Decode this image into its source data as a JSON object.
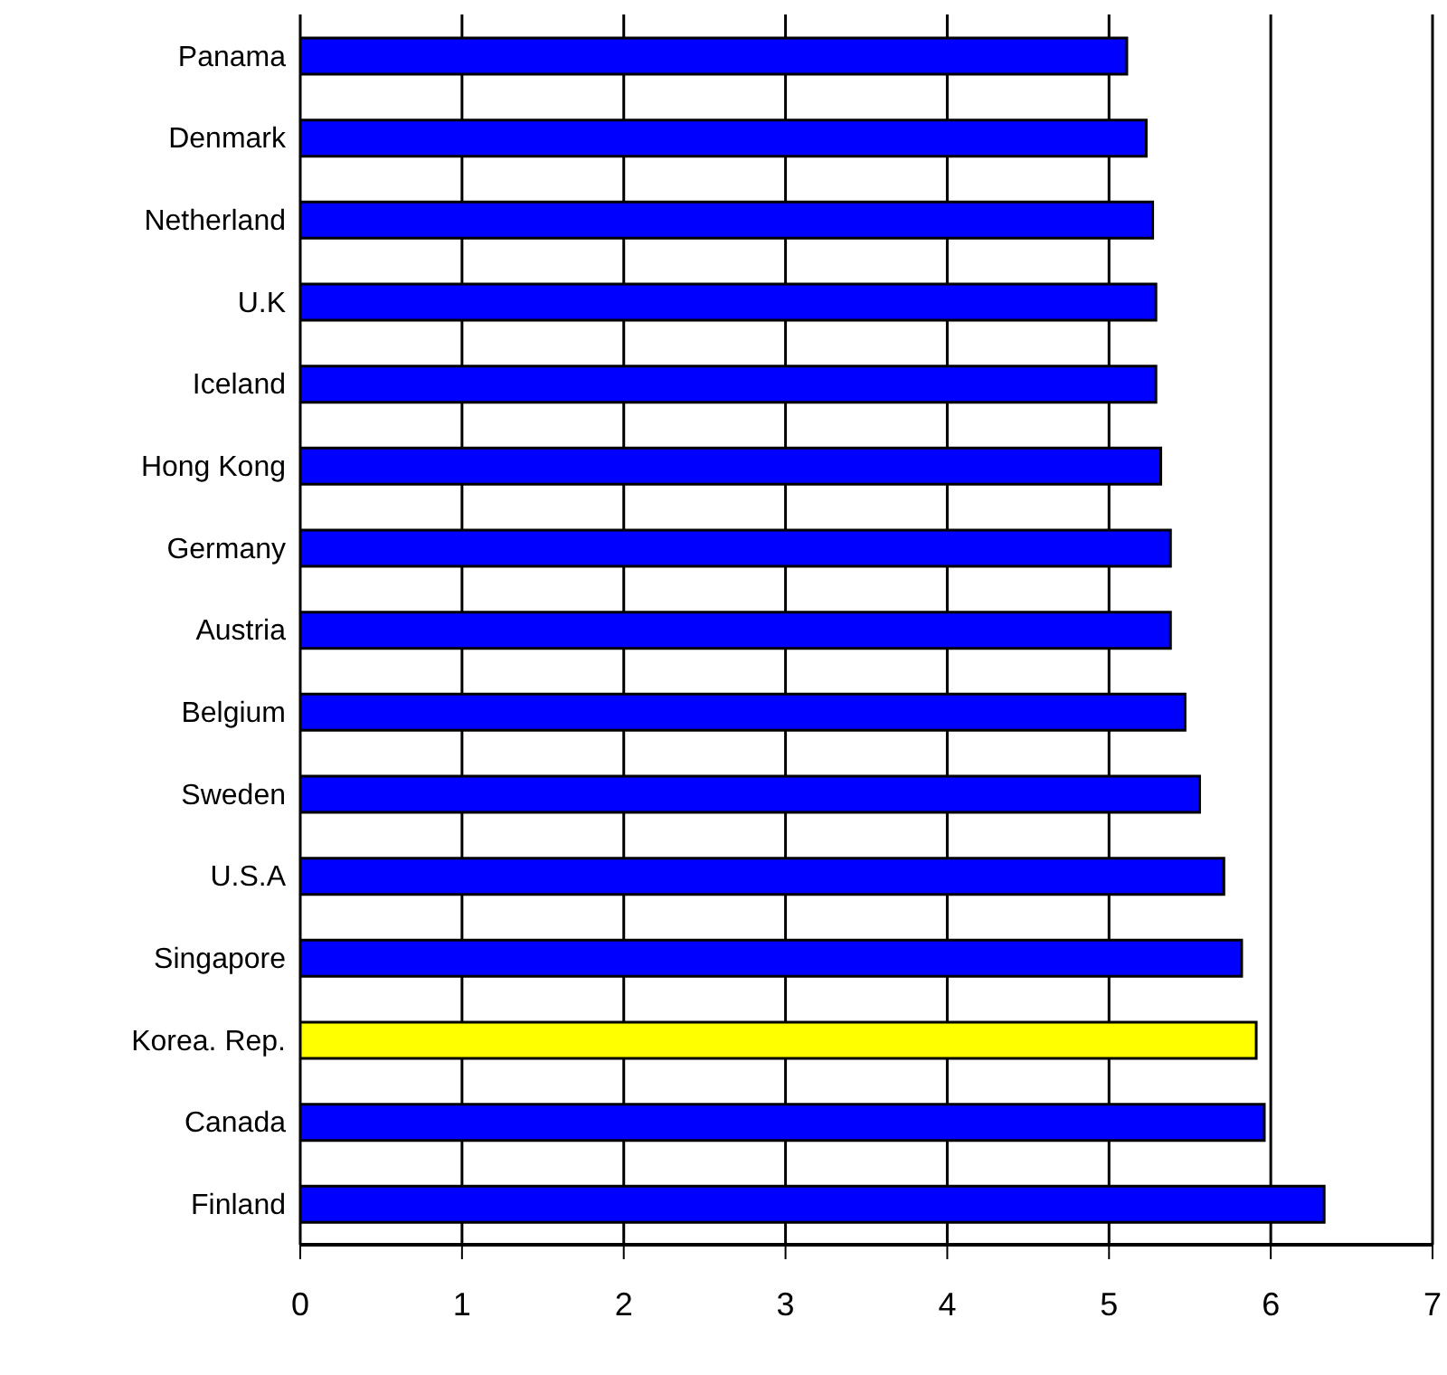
{
  "chart_data": {
    "type": "bar",
    "orientation": "horizontal",
    "categories": [
      "Panama",
      "Denmark",
      "Netherland",
      "U.K",
      "Iceland",
      "Hong Kong",
      "Germany",
      "Austria",
      "Belgium",
      "Sweden",
      "U.S.A",
      "Singapore",
      "Korea. Rep.",
      "Canada",
      "Finland"
    ],
    "values": [
      5.11,
      5.23,
      5.27,
      5.29,
      5.29,
      5.32,
      5.38,
      5.38,
      5.47,
      5.56,
      5.71,
      5.82,
      5.91,
      5.96,
      6.33
    ],
    "colors": [
      "#0000ff",
      "#0000ff",
      "#0000ff",
      "#0000ff",
      "#0000ff",
      "#0000ff",
      "#0000ff",
      "#0000ff",
      "#0000ff",
      "#0000ff",
      "#0000ff",
      "#0000ff",
      "#ffff00",
      "#0000ff",
      "#0000ff"
    ],
    "xlim": [
      0,
      7
    ],
    "xticks": [
      0,
      1,
      2,
      3,
      4,
      5,
      6,
      7
    ],
    "grid": "x",
    "legend": false
  }
}
